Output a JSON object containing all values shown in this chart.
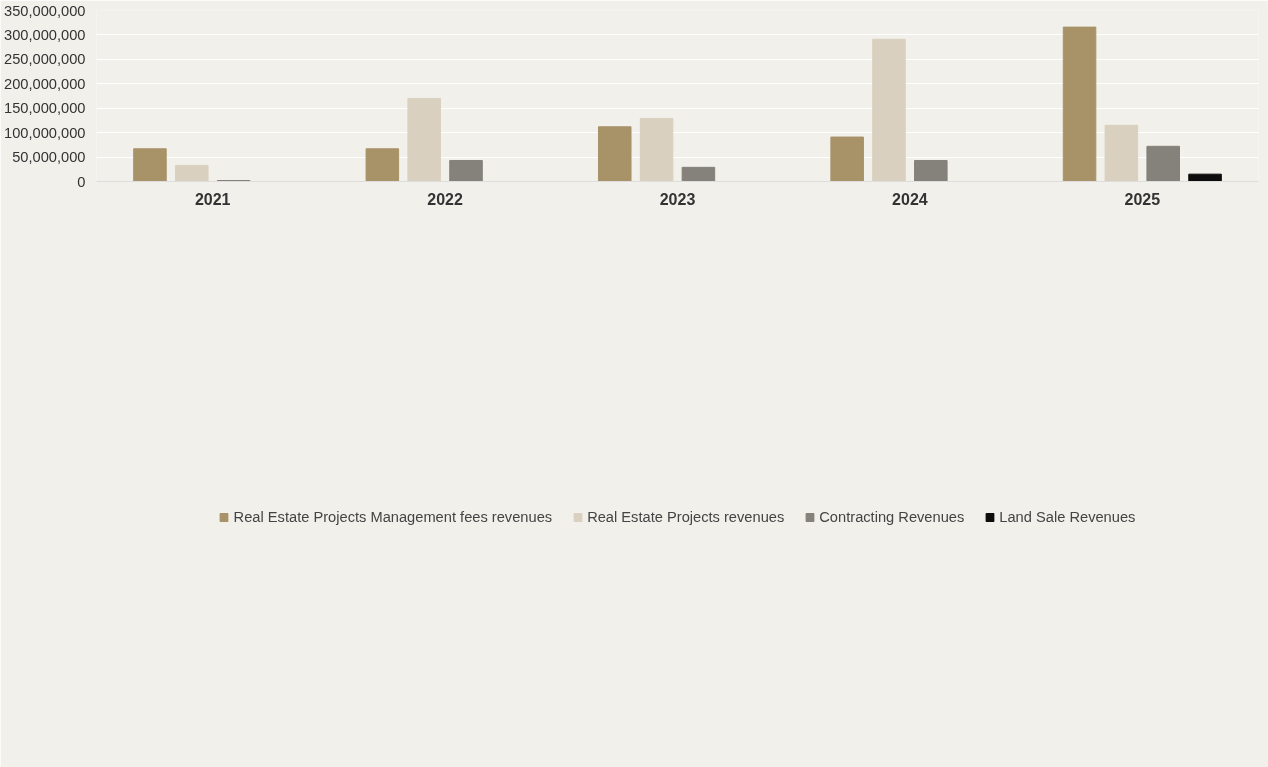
{
  "chart_data": {
    "type": "bar",
    "categories": [
      "2021",
      "2022",
      "2023",
      "2024",
      "2025"
    ],
    "series": [
      {
        "name": "Real Estate Projects Management fees revenues",
        "color": "#a89369",
        "values": [
          67000000,
          67000000,
          112000000,
          91000000,
          316000000
        ]
      },
      {
        "name": "Real Estate Projects revenues",
        "color": "#d9d0bf",
        "values": [
          33000000,
          170000000,
          129000000,
          291000000,
          115000000
        ]
      },
      {
        "name": "Contracting Revenues",
        "color": "#85817b",
        "values": [
          2000000,
          43000000,
          29000000,
          43000000,
          72000000
        ]
      },
      {
        "name": "Land Sale Revenues",
        "color": "#0d0d0d",
        "values": [
          null,
          null,
          null,
          null,
          15000000
        ]
      }
    ],
    "ylim": [
      0,
      350000000
    ],
    "yticks": [
      {
        "value": 0,
        "label": "0"
      },
      {
        "value": 50000000,
        "label": "50,000,000"
      },
      {
        "value": 100000000,
        "label": "100,000,000"
      },
      {
        "value": 150000000,
        "label": "150,000,000"
      },
      {
        "value": 200000000,
        "label": "200,000,000"
      },
      {
        "value": 250000000,
        "label": "250,000,000"
      },
      {
        "value": 300000000,
        "label": "300,000,000"
      },
      {
        "value": 350000000,
        "label": "350,000,000"
      }
    ],
    "grid": "y",
    "legend": "bottom"
  }
}
